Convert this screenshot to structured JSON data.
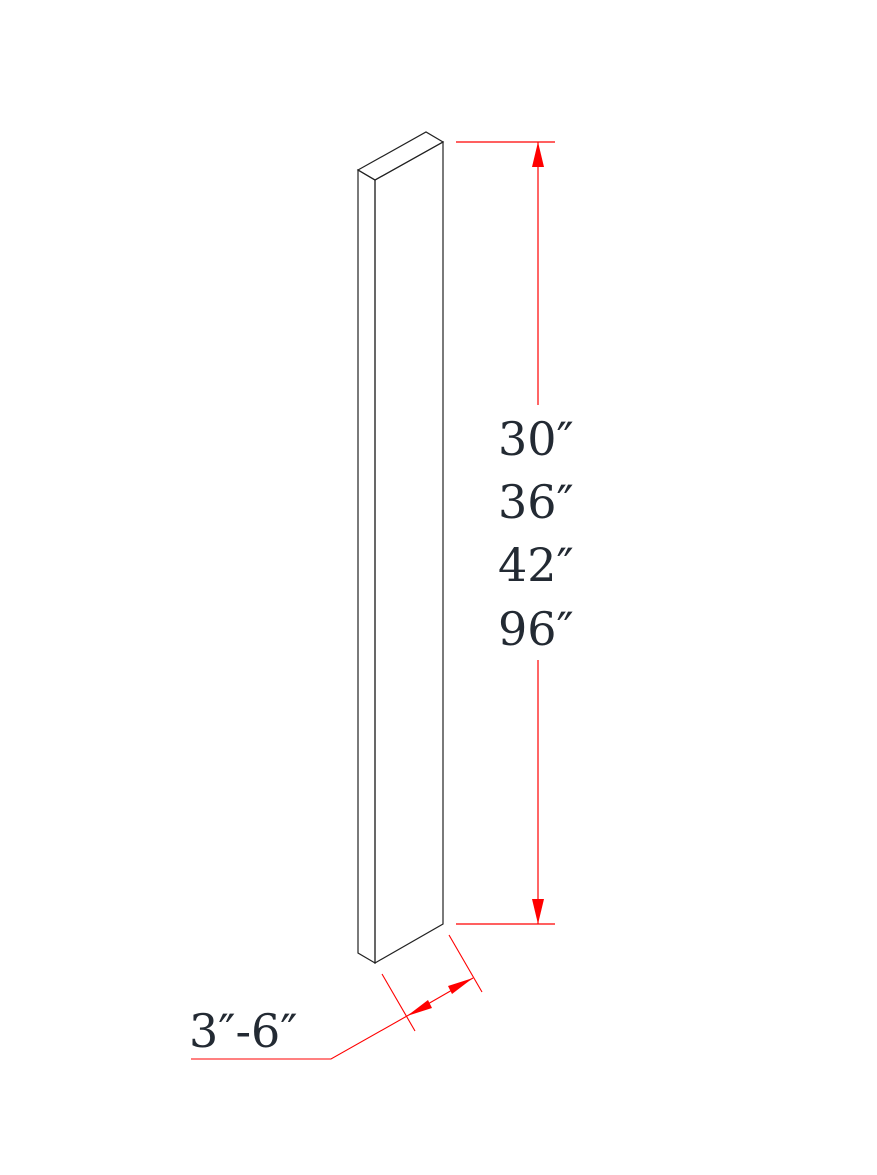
{
  "height_dimension": {
    "values": [
      "30″",
      "36″",
      "42″",
      "96″"
    ]
  },
  "width_dimension": {
    "value": "3″-6″"
  },
  "colors": {
    "outline": "#222222",
    "dimension": "#ff0000",
    "text": "#232a33"
  }
}
